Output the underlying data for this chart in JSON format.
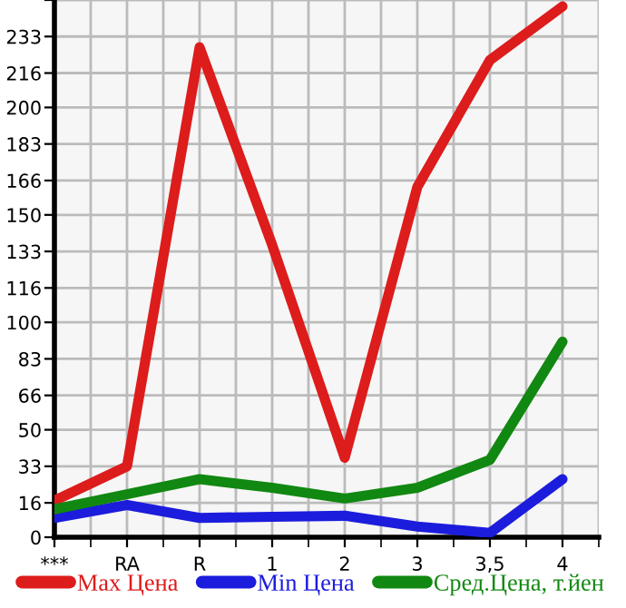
{
  "chart_data": {
    "type": "line",
    "categories": [
      "***",
      "RA",
      "R",
      "1",
      "2",
      "3",
      "3,5",
      "4"
    ],
    "series": [
      {
        "name": "Max Цена",
        "color": "#dd1c1c",
        "values": [
          17,
          33,
          228,
          136,
          37,
          163,
          222,
          247
        ]
      },
      {
        "name": "Min Цена",
        "color": "#1c1cdd",
        "values": [
          9,
          15,
          9,
          9.5,
          10,
          5,
          2,
          27
        ]
      },
      {
        "name": "Сред.Цена, т.йен",
        "color": "#118811",
        "values": [
          13,
          20,
          27,
          23,
          18,
          23,
          36,
          91
        ]
      }
    ],
    "ylim": [
      0,
      250
    ],
    "yticks": [
      0,
      16,
      33,
      50,
      66,
      83,
      100,
      116,
      133,
      150,
      166,
      183,
      200,
      216,
      233,
      {
        "value": 250,
        "label": null
      }
    ],
    "grid": true,
    "legend": "bottom",
    "marker": "none",
    "line_style": "solid"
  }
}
